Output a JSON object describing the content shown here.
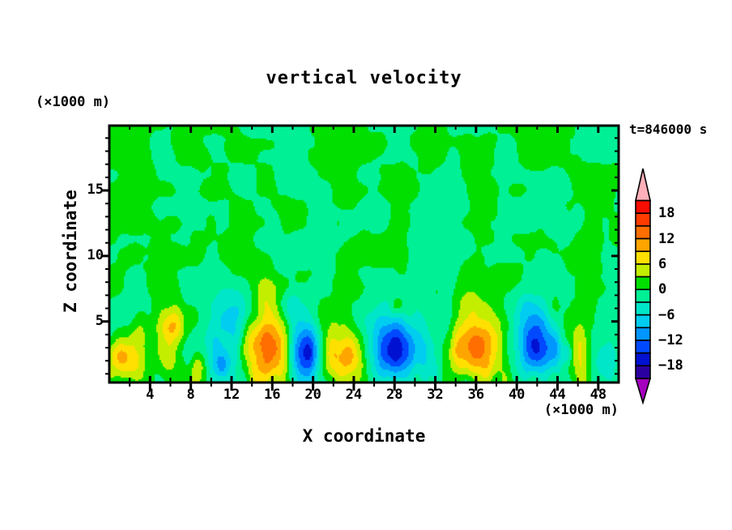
{
  "chart_data": {
    "type": "filled_contour",
    "title": "vertical velocity",
    "xlabel": "X coordinate",
    "ylabel": "Z coordinate",
    "x_unit_note": "(×1000 m)",
    "y_unit_note": "(×1000 m)",
    "time_label": "t=846000 s",
    "x_range_km": [
      0,
      50
    ],
    "z_range_km": [
      0.34,
      19.95
    ],
    "x_major_ticks": [
      4,
      8,
      12,
      16,
      20,
      24,
      28,
      32,
      36,
      40,
      44,
      48
    ],
    "x_minor_step_km": 2,
    "y_major_ticks": [
      5,
      10,
      15
    ],
    "y_minor_step_km": 1,
    "contour_interval": 3,
    "colorbar": {
      "tick_values": [
        18,
        12,
        6,
        0,
        -6,
        -12,
        -18
      ],
      "tick_labels": [
        "18",
        "12",
        "6",
        "0",
        "−6",
        "−12",
        "−18"
      ],
      "over_color": "#FFAFB9",
      "under_color": "#A500BE",
      "cells_top_to_bottom": [
        {
          "min": 18,
          "max": 21,
          "color": "#F90D00"
        },
        {
          "min": 15,
          "max": 18,
          "color": "#FF3C00"
        },
        {
          "min": 12,
          "max": 15,
          "color": "#FF6E00"
        },
        {
          "min": 9,
          "max": 12,
          "color": "#FFA500"
        },
        {
          "min": 6,
          "max": 9,
          "color": "#FFE000"
        },
        {
          "min": 3,
          "max": 6,
          "color": "#C3EE00"
        },
        {
          "min": 0,
          "max": 3,
          "color": "#00DF00"
        },
        {
          "min": -3,
          "max": 0,
          "color": "#00F096"
        },
        {
          "min": -6,
          "max": -3,
          "color": "#00E6C8"
        },
        {
          "min": -9,
          "max": -6,
          "color": "#00CDF0"
        },
        {
          "min": -12,
          "max": -9,
          "color": "#0096FF"
        },
        {
          "min": -15,
          "max": -12,
          "color": "#0049FF"
        },
        {
          "min": -18,
          "max": -15,
          "color": "#0011D2"
        },
        {
          "min": -21,
          "max": -18,
          "color": "#2B00A0"
        }
      ]
    },
    "features": [
      {
        "x": 1.4,
        "z": 2.0,
        "w": 8.5,
        "sx": 1.5,
        "sz": 1.1
      },
      {
        "x": 3.1,
        "z": 4.3,
        "w": 4.2,
        "sx": 0.7,
        "sz": 1.0
      },
      {
        "x": 6.1,
        "z": 4.6,
        "w": 10.5,
        "sx": 0.85,
        "sz": 1.0
      },
      {
        "x": 6.0,
        "z": 2.1,
        "w": 5.0,
        "sx": 0.9,
        "sz": 1.1
      },
      {
        "x": 8.8,
        "z": 1.7,
        "w": 7.5,
        "sx": 0.55,
        "sz": 0.9
      },
      {
        "x": 10.6,
        "z": 2.4,
        "w": -7.5,
        "sx": 2.0,
        "sz": 1.5
      },
      {
        "x": 11.1,
        "z": 1.6,
        "w": -4.5,
        "sx": 0.5,
        "sz": 0.6
      },
      {
        "x": 12.4,
        "z": 5.6,
        "w": -5.0,
        "sx": 1.5,
        "sz": 1.5
      },
      {
        "x": 13.8,
        "z": 4.0,
        "w": 4.2,
        "sx": 0.5,
        "sz": 1.2
      },
      {
        "x": 15.85,
        "z": 3.0,
        "w": 14.8,
        "sx": 1.3,
        "sz": 1.85
      },
      {
        "x": 15.3,
        "z": 6.9,
        "w": 4.5,
        "sx": 0.8,
        "sz": 1.4
      },
      {
        "x": 19.3,
        "z": 2.6,
        "w": -16.5,
        "sx": 0.95,
        "sz": 1.65
      },
      {
        "x": 18.1,
        "z": 6.0,
        "w": -4.5,
        "sx": 0.8,
        "sz": 1.2
      },
      {
        "x": 23.3,
        "z": 2.3,
        "w": 12.5,
        "sx": 1.45,
        "sz": 1.35
      },
      {
        "x": 23.0,
        "z": 5.3,
        "w": 3.8,
        "sx": 0.8,
        "sz": 1.2
      },
      {
        "x": 28.1,
        "z": 2.7,
        "w": -14.5,
        "sx": 1.25,
        "sz": 1.55
      },
      {
        "x": 27.3,
        "z": 3.2,
        "w": -4.0,
        "sx": 2.3,
        "sz": 2.0
      },
      {
        "x": 28.2,
        "z": 6.1,
        "w": 4.6,
        "sx": 0.5,
        "sz": 0.55
      },
      {
        "x": 31.0,
        "z": 2.5,
        "w": -4.5,
        "sx": 0.7,
        "sz": 2.2
      },
      {
        "x": 36.0,
        "z": 2.8,
        "w": 13.2,
        "sx": 1.95,
        "sz": 1.6
      },
      {
        "x": 35.2,
        "z": 6.4,
        "w": 4.0,
        "sx": 0.9,
        "sz": 1.4
      },
      {
        "x": 42.0,
        "z": 3.0,
        "w": -13.8,
        "sx": 1.15,
        "sz": 1.6
      },
      {
        "x": 41.3,
        "z": 5.8,
        "w": -4.5,
        "sx": 1.4,
        "sz": 1.4
      },
      {
        "x": 44.0,
        "z": 2.8,
        "w": -6.5,
        "sx": 0.6,
        "sz": 1.3
      },
      {
        "x": 45.0,
        "z": 2.5,
        "w": -6.0,
        "sx": 0.35,
        "sz": 0.6
      },
      {
        "x": 46.3,
        "z": 3.0,
        "w": 5.2,
        "sx": 0.55,
        "sz": 1.6
      },
      {
        "x": 48.6,
        "z": 2.0,
        "w": -5.5,
        "sx": 0.9,
        "sz": 1.2
      }
    ],
    "background_texture": {
      "seed_coarse": 11,
      "seed_fine": 29,
      "seed_streak": 47,
      "coarse_scale_km": 2.6,
      "coarse_amp": 1.7,
      "fine_scale_km": 1.25,
      "fine_amp": 0.85,
      "streak_x_scale_km": 0.95,
      "streak_z_scale_km": 3.1,
      "streak_amp": 3.3,
      "streak_top_km": 8.5
    }
  }
}
